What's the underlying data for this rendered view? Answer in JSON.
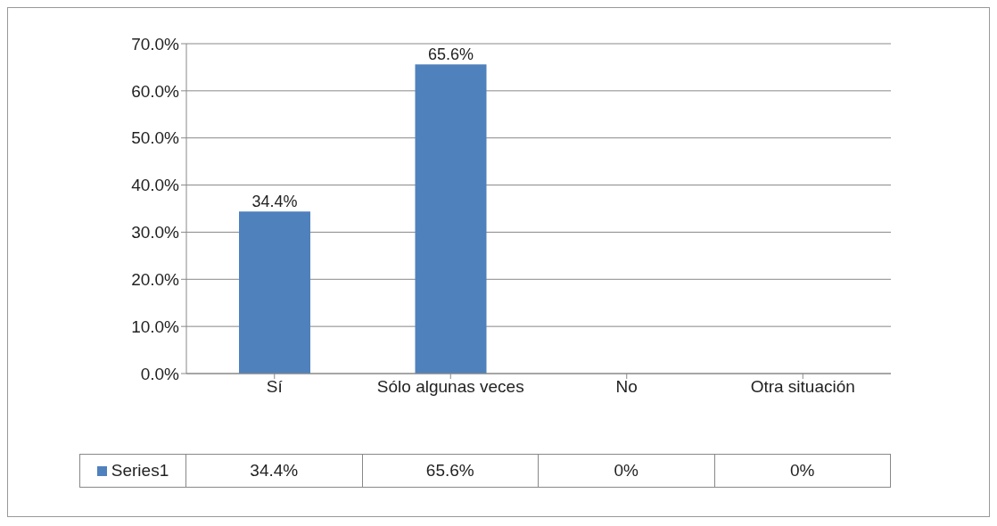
{
  "chart_data": {
    "type": "bar",
    "categories": [
      "Sí",
      "Sólo algunas veces",
      "No",
      "Otra situación"
    ],
    "series": [
      {
        "name": "Series1",
        "color": "#4f81bd",
        "values": [
          34.4,
          65.6,
          0,
          0
        ]
      }
    ],
    "value_labels": [
      "34.4%",
      "65.6%",
      "0%",
      "0%"
    ],
    "ylim": [
      0,
      70
    ],
    "yticks": [
      {
        "value": 0,
        "label": "0.0%"
      },
      {
        "value": 10,
        "label": "10.0%"
      },
      {
        "value": 20,
        "label": "20.0%"
      },
      {
        "value": 30,
        "label": "30.0%"
      },
      {
        "value": 40,
        "label": "40.0%"
      },
      {
        "value": 50,
        "label": "50.0%"
      },
      {
        "value": 60,
        "label": "60.0%"
      },
      {
        "value": 70,
        "label": "70.0%"
      }
    ],
    "grid": "y",
    "legend": "bottom left"
  }
}
